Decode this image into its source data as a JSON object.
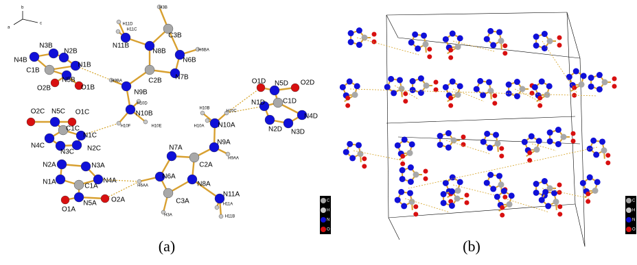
{
  "panel_a": {
    "axes": [
      "b",
      "a",
      "c"
    ],
    "atoms": [
      "N3B",
      "N2B",
      "N4B",
      "N1B",
      "C1B",
      "N5B",
      "O2B",
      "O1B",
      "H11D",
      "H11C",
      "N11B",
      "C3B",
      "H3B",
      "N8B",
      "N6B",
      "H6BA",
      "C2B",
      "N7B",
      "H9BA",
      "N9B",
      "N10B",
      "H10D",
      "H10F",
      "H10E",
      "O2C",
      "N5C",
      "O1C",
      "C1C",
      "N1C",
      "N4C",
      "N2C",
      "N3C",
      "N7A",
      "C2A",
      "N9A",
      "N6A",
      "H6AA",
      "N8A",
      "C3A",
      "H3A",
      "N11A",
      "H11A",
      "H11B",
      "H9AA",
      "N10A",
      "H10B",
      "H10A",
      "H10C",
      "O1D",
      "N5D",
      "O2D",
      "N1D",
      "C1D",
      "N4D",
      "N2D",
      "N3D",
      "N2A",
      "N3A",
      "N1A",
      "C1A",
      "N4A",
      "N5A",
      "O2A",
      "O1A"
    ],
    "legend": [
      "C",
      "H",
      "N",
      "O"
    ],
    "caption": "(a)"
  },
  "panel_b": {
    "legend": [
      "C",
      "H",
      "N",
      "O"
    ],
    "caption": "(b)"
  }
}
